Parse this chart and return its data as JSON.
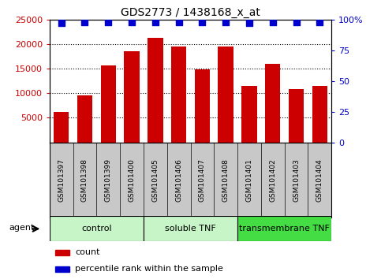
{
  "title": "GDS2773 / 1438168_x_at",
  "samples": [
    "GSM101397",
    "GSM101398",
    "GSM101399",
    "GSM101400",
    "GSM101405",
    "GSM101406",
    "GSM101407",
    "GSM101408",
    "GSM101401",
    "GSM101402",
    "GSM101403",
    "GSM101404"
  ],
  "counts": [
    6200,
    9600,
    15600,
    18500,
    21200,
    19500,
    14900,
    19500,
    11500,
    16000,
    10900,
    11500
  ],
  "percentiles": [
    97,
    98,
    98,
    98,
    98,
    98,
    98,
    98,
    97,
    98,
    98,
    98
  ],
  "bar_color": "#cc0000",
  "dot_color": "#0000cc",
  "ylim_left": [
    0,
    25000
  ],
  "ylim_right": [
    0,
    100
  ],
  "yticks_left": [
    5000,
    10000,
    15000,
    20000,
    25000
  ],
  "yticks_right": [
    0,
    25,
    50,
    75,
    100
  ],
  "groups": [
    {
      "label": "control",
      "start": 0,
      "end": 4,
      "light_color": "#c8f5c8",
      "dark_color": "#c8f5c8"
    },
    {
      "label": "soluble TNF",
      "start": 4,
      "end": 8,
      "light_color": "#c8f5c8",
      "dark_color": "#c8f5c8"
    },
    {
      "label": "transmembrane TNF",
      "start": 8,
      "end": 12,
      "light_color": "#44dd44",
      "dark_color": "#44dd44"
    }
  ],
  "agent_label": "agent",
  "legend_count_label": "count",
  "legend_percentile_label": "percentile rank within the sample",
  "tick_label_color_left": "#cc0000",
  "tick_label_color_right": "#0000cc",
  "bar_width": 0.65,
  "dot_size": 35,
  "background_color": "#ffffff",
  "grid_color": "#000000",
  "grid_linestyle": "dotted",
  "grid_linewidth": 0.8,
  "title_fontsize": 10,
  "gray_box_color": "#c8c8c8"
}
